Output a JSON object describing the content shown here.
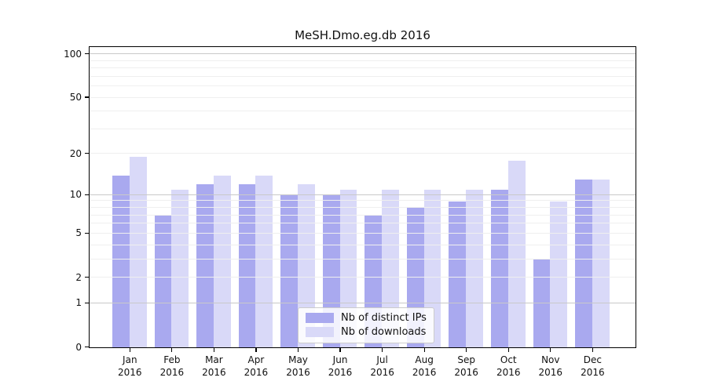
{
  "chart_data": {
    "type": "bar",
    "title": "MeSH.Dmo.eg.db 2016",
    "categories": [
      "Jan",
      "Feb",
      "Mar",
      "Apr",
      "May",
      "Jun",
      "Jul",
      "Aug",
      "Sep",
      "Oct",
      "Nov",
      "Dec"
    ],
    "year_label": "2016",
    "series": [
      {
        "name": "Nb of distinct IPs",
        "color": "#a9a9ef",
        "values": [
          14,
          7,
          12,
          12,
          10,
          10,
          7,
          8,
          9,
          11,
          3,
          13
        ]
      },
      {
        "name": "Nb of downloads",
        "color": "#d9d9f8",
        "values": [
          19,
          11,
          14,
          14,
          12,
          11,
          11,
          11,
          11,
          18,
          9,
          13
        ]
      }
    ],
    "yscale": "log1p",
    "yticks": [
      0,
      1,
      2,
      5,
      10,
      20,
      50,
      100
    ],
    "major_gridlines": [
      1,
      10,
      100
    ],
    "minor_gridlines": [
      2,
      3,
      4,
      5,
      6,
      7,
      8,
      9,
      20,
      30,
      40,
      50,
      60,
      70,
      80,
      90
    ],
    "ylim": [
      0,
      113
    ],
    "grid": true,
    "legend_position": "lower center",
    "text_color": "#111111",
    "grid_major_color": "#c9c9c9",
    "grid_minor_color": "#efefef"
  }
}
